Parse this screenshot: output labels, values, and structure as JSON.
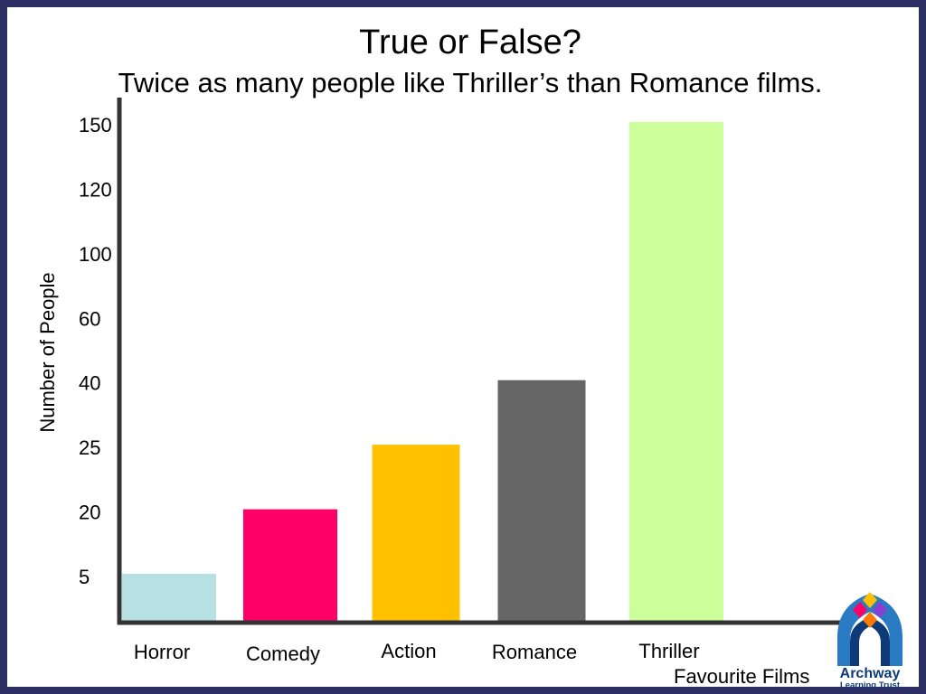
{
  "slide": {
    "title": "True or False?",
    "subtitle": "Twice as many people like Thriller’s than Romance films."
  },
  "logo": {
    "name": "Archway Learning Trust",
    "text_line1": "Archway",
    "text_line2": "Learning Trust"
  },
  "chart_data": {
    "type": "bar",
    "title": "",
    "xlabel": "Favourite Films",
    "ylabel": "Number of People",
    "categories": [
      "Horror",
      "Comedy",
      "Action",
      "Romance",
      "Thriller"
    ],
    "values": [
      5,
      20,
      25,
      40,
      150
    ],
    "colors": [
      "#b7e0e3",
      "#ff0066",
      "#ffc000",
      "#666666",
      "#ccff99"
    ],
    "y_tick_labels": [
      "150",
      "120",
      "100",
      "60",
      "40",
      "25",
      "20",
      "5"
    ],
    "y_axis_note": "tick labels are evenly spaced but not linearly scaled",
    "grid": false,
    "legend": "none"
  }
}
